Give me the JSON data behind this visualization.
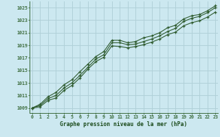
{
  "title": "Graphe pression niveau de la mer (hPa)",
  "bg_color": "#cce8f0",
  "plot_bg_color": "#cce8f0",
  "grid_color": "#b0d0d8",
  "line_color": "#2d5a2d",
  "x_ticks": [
    0,
    1,
    2,
    3,
    4,
    5,
    6,
    7,
    8,
    9,
    10,
    11,
    12,
    13,
    14,
    15,
    16,
    17,
    18,
    19,
    20,
    21,
    22,
    23
  ],
  "y_ticks": [
    1009,
    1011,
    1013,
    1015,
    1017,
    1019,
    1021,
    1023,
    1025
  ],
  "ylim": [
    1008.2,
    1026.0
  ],
  "xlim": [
    -0.3,
    23.3
  ],
  "line1": [
    1009.0,
    1009.4,
    1010.5,
    1011.0,
    1012.2,
    1013.0,
    1014.2,
    1015.5,
    1016.8,
    1017.5,
    1019.4,
    1019.4,
    1019.1,
    1019.2,
    1019.6,
    1020.0,
    1020.5,
    1021.2,
    1021.7,
    1022.8,
    1023.3,
    1023.6,
    1024.2,
    1025.0
  ],
  "line2": [
    1009.0,
    1009.6,
    1010.8,
    1011.5,
    1012.7,
    1013.5,
    1014.8,
    1016.0,
    1017.2,
    1018.0,
    1019.8,
    1019.8,
    1019.4,
    1019.6,
    1020.2,
    1020.5,
    1021.0,
    1021.8,
    1022.2,
    1023.2,
    1023.7,
    1023.9,
    1024.5,
    1025.3
  ],
  "line3": [
    1009.0,
    1009.2,
    1010.2,
    1010.6,
    1011.8,
    1012.6,
    1013.8,
    1015.2,
    1016.4,
    1017.1,
    1018.9,
    1018.8,
    1018.6,
    1018.8,
    1019.1,
    1019.5,
    1020.0,
    1020.7,
    1021.1,
    1022.1,
    1022.6,
    1022.9,
    1023.5,
    1024.3
  ]
}
